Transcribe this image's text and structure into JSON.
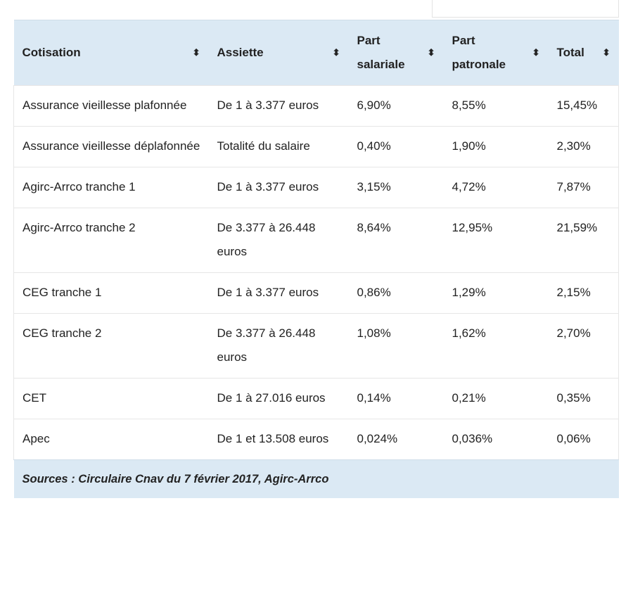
{
  "table": {
    "headers": [
      {
        "label": "Cotisation"
      },
      {
        "label": "Assiette"
      },
      {
        "label": "Part salariale"
      },
      {
        "label": "Part patronale"
      },
      {
        "label": "Total"
      }
    ],
    "rows": [
      {
        "cotisation": "Assurance vieillesse plafonnée",
        "assiette": "De 1 à 3.377 euros",
        "salariale": "6,90%",
        "patronale": "8,55%",
        "total": "15,45%"
      },
      {
        "cotisation": "Assurance vieillesse déplafonnée",
        "assiette": "Totalité du salaire",
        "salariale": "0,40%",
        "patronale": "1,90%",
        "total": "2,30%"
      },
      {
        "cotisation": "Agirc-Arrco tranche 1",
        "assiette": "De 1 à 3.377 euros",
        "salariale": "3,15%",
        "patronale": "4,72%",
        "total": "7,87%"
      },
      {
        "cotisation": "Agirc-Arrco tranche 2",
        "assiette": "De 3.377 à 26.448 euros",
        "salariale": "8,64%",
        "patronale": "12,95%",
        "total": "21,59%"
      },
      {
        "cotisation": "CEG tranche 1",
        "assiette": "De 1 à 3.377 euros",
        "salariale": "0,86%",
        "patronale": "1,29%",
        "total": "2,15%"
      },
      {
        "cotisation": "CEG tranche 2",
        "assiette": "De 3.377 à 26.448 euros",
        "salariale": "1,08%",
        "patronale": "1,62%",
        "total": "2,70%"
      },
      {
        "cotisation": "CET",
        "assiette": "De 1 à 27.016 euros",
        "salariale": "0,14%",
        "patronale": "0,21%",
        "total": "0,35%"
      },
      {
        "cotisation": "Apec",
        "assiette": "De 1 et 13.508 euros",
        "salariale": "0,024%",
        "patronale": "0,036%",
        "total": "0,06%"
      }
    ],
    "footer": "Sources : Circulaire Cnav du 7 février 2017, Agirc-Arrco",
    "sort_icon": "sort-updown-icon",
    "header_color": "#dbe9f4"
  }
}
